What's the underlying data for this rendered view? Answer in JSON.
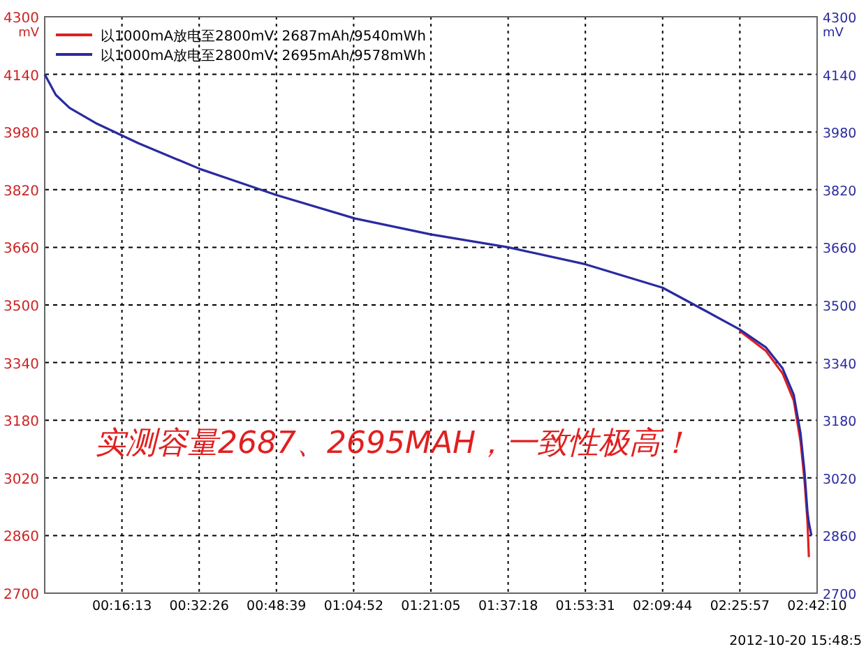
{
  "chart_data": {
    "type": "line",
    "ylabel": "mV",
    "y2label": "mV",
    "x": [
      0,
      0.039,
      0.087,
      0.183,
      0.328,
      0.545,
      0.811,
      1.086,
      1.351,
      1.622,
      1.892,
      2.162,
      2.307,
      2.432,
      2.524,
      2.582,
      2.621,
      2.645,
      2.659,
      2.669,
      2.674,
      2.683
    ],
    "series": [
      {
        "name": "以1000mA放电至2800mV: 2687mAh/9540mWh",
        "color": "#e02020",
        "values": [
          null,
          null,
          null,
          null,
          null,
          null,
          null,
          null,
          null,
          null,
          null,
          null,
          null,
          3428,
          3372,
          3310,
          3235,
          3120,
          3010,
          2900,
          2800,
          null
        ]
      },
      {
        "name": "以1000mA放电至2800mV: 2695mAh/9578mWh",
        "color": "#2a2aa0",
        "values": [
          4140,
          4083,
          4047,
          4003,
          3949,
          3877,
          3805,
          3740,
          3696,
          3660,
          3613,
          3548,
          3486,
          3432,
          3382,
          3324,
          3251,
          3143,
          3035,
          2926,
          2895,
          2860
        ]
      }
    ],
    "xlim": [
      0,
      2.7028
    ],
    "xticks": [
      {
        "value": 0.2703,
        "label": "00:16:13"
      },
      {
        "value": 0.5406,
        "label": "00:32:26"
      },
      {
        "value": 0.8108,
        "label": "00:48:39"
      },
      {
        "value": 1.0811,
        "label": "01:04:52"
      },
      {
        "value": 1.3514,
        "label": "01:21:05"
      },
      {
        "value": 1.6217,
        "label": "01:37:18"
      },
      {
        "value": 1.8919,
        "label": "01:53:31"
      },
      {
        "value": 2.1622,
        "label": "02:09:44"
      },
      {
        "value": 2.4325,
        "label": "02:25:57"
      },
      {
        "value": 2.7028,
        "label": "02:42:10"
      }
    ],
    "ylim": [
      2700,
      4300
    ],
    "yticks": [
      2700,
      2860,
      3020,
      3180,
      3340,
      3500,
      3660,
      3820,
      3980,
      4140,
      4300
    ],
    "y2lim": [
      2700,
      4300
    ],
    "y2ticks": [
      2700,
      2860,
      3020,
      3180,
      3340,
      3500,
      3660,
      3820,
      3980,
      4140,
      4300
    ],
    "grid": true,
    "legend": "top left",
    "annotations": [
      "实测容量2687、2695MAH，一致性极高！",
      "2012-10-20 15:48:5"
    ]
  }
}
